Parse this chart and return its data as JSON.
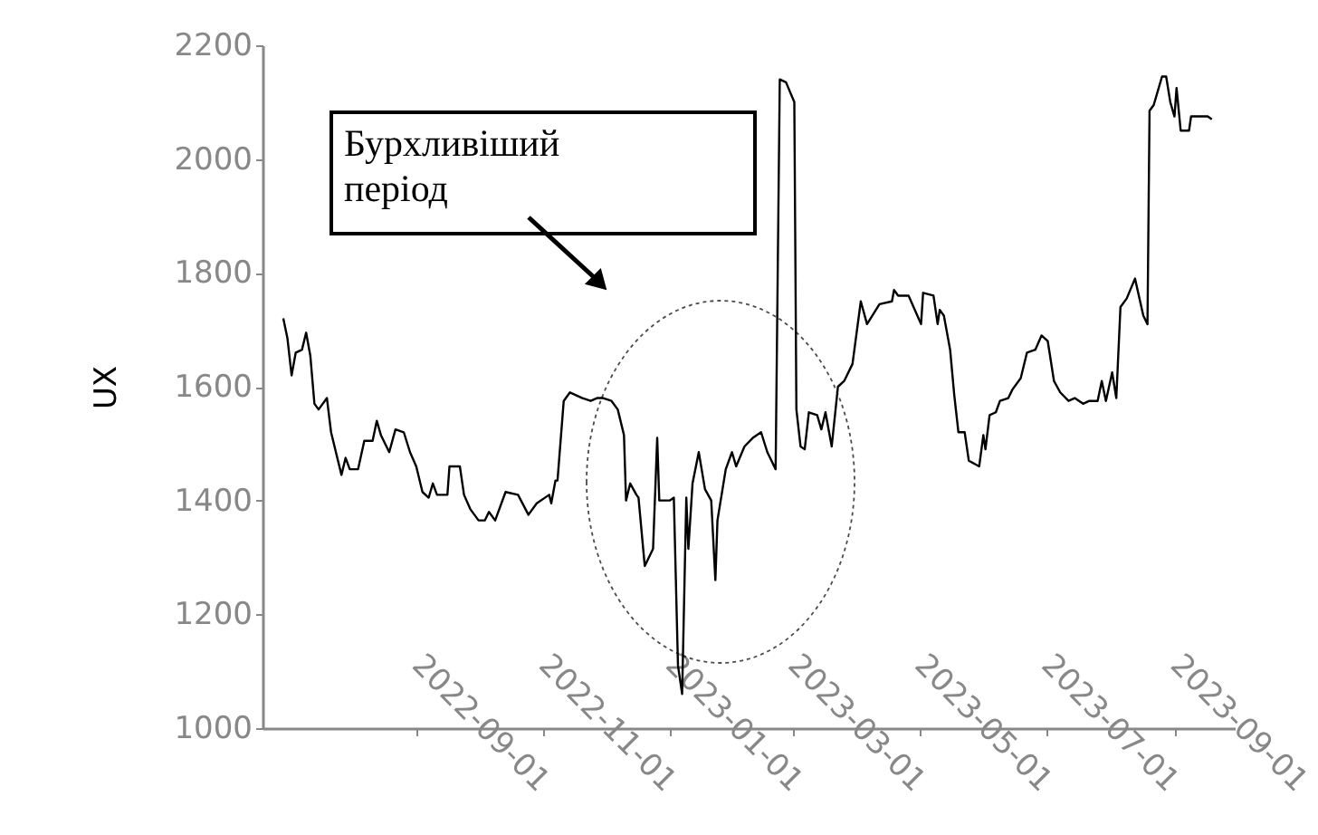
{
  "chart_data": {
    "type": "line",
    "ylabel": "UX",
    "color": "#000000",
    "annotations": [
      "Бурхливіший період"
    ],
    "xlim": [
      "2022-06-19",
      "2023-09-30"
    ],
    "xticks": [
      "2022-09-01",
      "2022-11-01",
      "2023-01-01",
      "2023-03-01",
      "2023-05-01",
      "2023-07-01",
      "2023-09-01"
    ],
    "ylim": [
      1000,
      2200
    ],
    "yticks": [
      1000,
      1200,
      1400,
      1600,
      1800,
      2000,
      2200
    ],
    "x": [
      "2022-06-29",
      "2022-07-01",
      "2022-07-03",
      "2022-07-05",
      "2022-07-08",
      "2022-07-10",
      "2022-07-12",
      "2022-07-14",
      "2022-07-16",
      "2022-07-20",
      "2022-07-22",
      "2022-07-27",
      "2022-07-29",
      "2022-07-31",
      "2022-08-04",
      "2022-08-07",
      "2022-08-11",
      "2022-08-13",
      "2022-08-15",
      "2022-08-19",
      "2022-08-22",
      "2022-08-26",
      "2022-08-29",
      "2022-09-01",
      "2022-09-04",
      "2022-09-07",
      "2022-09-09",
      "2022-09-11",
      "2022-09-16",
      "2022-09-17",
      "2022-09-22",
      "2022-09-24",
      "2022-09-27",
      "2022-10-01",
      "2022-10-04",
      "2022-10-06",
      "2022-10-09",
      "2022-10-14",
      "2022-10-20",
      "2022-10-25",
      "2022-10-29",
      "2022-11-04",
      "2022-11-05",
      "2022-11-07",
      "2022-11-08",
      "2022-11-11",
      "2022-11-14",
      "2022-11-20",
      "2022-11-24",
      "2022-11-27",
      "2022-11-30",
      "2022-12-04",
      "2022-12-07",
      "2022-12-10",
      "2022-12-11",
      "2022-12-13",
      "2022-12-16",
      "2022-12-17",
      "2022-12-20",
      "2022-12-24",
      "2022-12-26",
      "2022-12-27",
      "2023-01-01",
      "2023-01-03",
      "2023-01-05",
      "2023-01-07",
      "2023-01-09",
      "2023-01-10",
      "2023-01-12",
      "2023-01-15",
      "2023-01-18",
      "2023-01-21",
      "2023-01-23",
      "2023-01-24",
      "2023-01-28",
      "2023-01-31",
      "2023-02-02",
      "2023-02-06",
      "2023-02-10",
      "2023-02-14",
      "2023-02-17",
      "2023-02-21",
      "2023-02-23",
      "2023-02-26",
      "2023-03-02",
      "2023-03-03",
      "2023-03-05",
      "2023-03-07",
      "2023-03-09",
      "2023-03-13",
      "2023-03-15",
      "2023-03-17",
      "2023-03-20",
      "2023-03-23",
      "2023-03-26",
      "2023-03-30",
      "2023-04-03",
      "2023-04-06",
      "2023-04-12",
      "2023-04-18",
      "2023-04-19",
      "2023-04-21",
      "2023-04-26",
      "2023-05-02",
      "2023-05-03",
      "2023-05-08",
      "2023-05-10",
      "2023-05-11",
      "2023-05-13",
      "2023-05-16",
      "2023-05-18",
      "2023-05-20",
      "2023-05-23",
      "2023-05-25",
      "2023-05-30",
      "2023-06-01",
      "2023-06-02",
      "2023-06-04",
      "2023-06-07",
      "2023-06-09",
      "2023-06-13",
      "2023-06-15",
      "2023-06-19",
      "2023-06-22",
      "2023-06-26",
      "2023-06-29",
      "2023-07-02",
      "2023-07-05",
      "2023-07-08",
      "2023-07-12",
      "2023-07-15",
      "2023-07-19",
      "2023-07-22",
      "2023-07-26",
      "2023-07-28",
      "2023-07-30",
      "2023-08-02",
      "2023-08-04",
      "2023-08-06",
      "2023-08-09",
      "2023-08-13",
      "2023-08-17",
      "2023-08-19",
      "2023-08-20",
      "2023-08-22",
      "2023-08-26",
      "2023-08-28",
      "2023-08-30",
      "2023-09-01",
      "2023-09-02",
      "2023-09-04",
      "2023-09-08",
      "2023-09-09",
      "2023-09-17",
      "2023-09-19"
    ],
    "values": [
      1720,
      1685,
      1620,
      1660,
      1665,
      1695,
      1655,
      1570,
      1560,
      1580,
      1520,
      1445,
      1475,
      1455,
      1455,
      1505,
      1505,
      1540,
      1515,
      1485,
      1525,
      1520,
      1485,
      1460,
      1415,
      1405,
      1430,
      1410,
      1410,
      1460,
      1460,
      1410,
      1385,
      1365,
      1365,
      1380,
      1365,
      1415,
      1410,
      1375,
      1395,
      1410,
      1395,
      1435,
      1435,
      1575,
      1590,
      1580,
      1575,
      1580,
      1580,
      1575,
      1560,
      1515,
      1400,
      1430,
      1410,
      1405,
      1285,
      1315,
      1510,
      1400,
      1400,
      1405,
      1110,
      1060,
      1405,
      1315,
      1430,
      1485,
      1420,
      1400,
      1260,
      1365,
      1455,
      1485,
      1460,
      1495,
      1510,
      1520,
      1485,
      1455,
      2140,
      2135,
      2100,
      1560,
      1495,
      1490,
      1555,
      1550,
      1525,
      1555,
      1495,
      1600,
      1610,
      1640,
      1750,
      1710,
      1745,
      1750,
      1770,
      1760,
      1760,
      1710,
      1765,
      1760,
      1710,
      1735,
      1725,
      1665,
      1585,
      1520,
      1520,
      1470,
      1460,
      1515,
      1490,
      1550,
      1555,
      1575,
      1580,
      1595,
      1615,
      1660,
      1665,
      1690,
      1680,
      1610,
      1590,
      1575,
      1580,
      1570,
      1575,
      1575,
      1610,
      1575,
      1625,
      1580,
      1740,
      1755,
      1790,
      1725,
      1710,
      2085,
      2095,
      2145,
      2145,
      2100,
      2075,
      2125,
      2050,
      2050,
      2075,
      2075,
      2070
    ]
  }
}
